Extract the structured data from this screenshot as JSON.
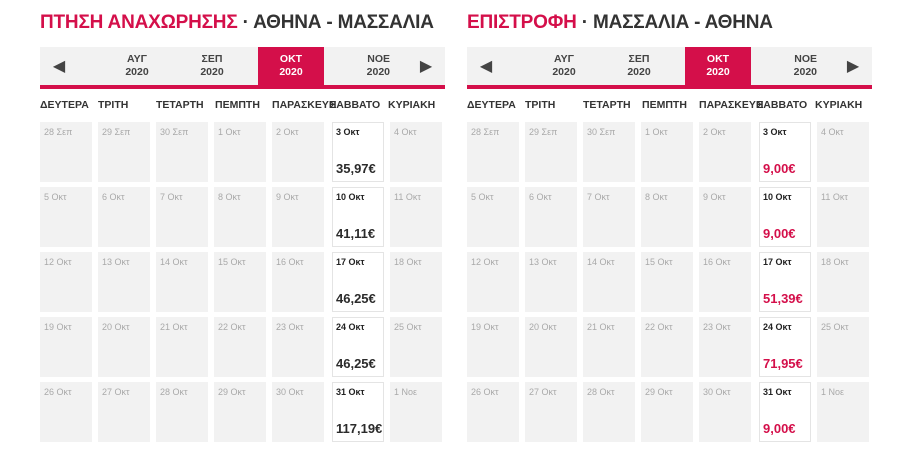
{
  "departure": {
    "title_label": "ΠΤΗΣΗ ΑΝΑΧΩΡΗΣΗΣ",
    "title_route": " · ΑΘΗΝΑ - ΜΑΣΣΑΛΙΑ",
    "months": [
      {
        "name": "ΑΥΓ",
        "year": "2020",
        "active": false
      },
      {
        "name": "ΣΕΠ",
        "year": "2020",
        "active": false
      },
      {
        "name": "ΟΚΤ",
        "year": "2020",
        "active": true
      },
      {
        "name": "ΝΟΕ",
        "year": "2020",
        "active": false
      }
    ],
    "weekdays": [
      "ΔΕΥΤΕΡΑ",
      "ΤΡΙΤΗ",
      "ΤΕΤΑΡΤΗ",
      "ΠΕΜΠΤΗ",
      "ΠΑΡΑΣΚΕΥΗ",
      "ΣΑΒΒΑΤΟ",
      "ΚΥΡΙΑΚΗ"
    ],
    "weeks": [
      [
        {
          "d": "28 Σεπ"
        },
        {
          "d": "29 Σεπ"
        },
        {
          "d": "30 Σεπ"
        },
        {
          "d": "1 Οκτ"
        },
        {
          "d": "2 Οκτ"
        },
        {
          "d": "3 Οκτ",
          "price": "35,97€"
        },
        {
          "d": "4 Οκτ"
        }
      ],
      [
        {
          "d": "5 Οκτ"
        },
        {
          "d": "6 Οκτ"
        },
        {
          "d": "7 Οκτ"
        },
        {
          "d": "8 Οκτ"
        },
        {
          "d": "9 Οκτ"
        },
        {
          "d": "10 Οκτ",
          "price": "41,11€"
        },
        {
          "d": "11 Οκτ"
        }
      ],
      [
        {
          "d": "12 Οκτ"
        },
        {
          "d": "13 Οκτ"
        },
        {
          "d": "14 Οκτ"
        },
        {
          "d": "15 Οκτ"
        },
        {
          "d": "16 Οκτ"
        },
        {
          "d": "17 Οκτ",
          "price": "46,25€"
        },
        {
          "d": "18 Οκτ"
        }
      ],
      [
        {
          "d": "19 Οκτ"
        },
        {
          "d": "20 Οκτ"
        },
        {
          "d": "21 Οκτ"
        },
        {
          "d": "22 Οκτ"
        },
        {
          "d": "23 Οκτ"
        },
        {
          "d": "24 Οκτ",
          "price": "46,25€"
        },
        {
          "d": "25 Οκτ"
        }
      ],
      [
        {
          "d": "26 Οκτ"
        },
        {
          "d": "27 Οκτ"
        },
        {
          "d": "28 Οκτ"
        },
        {
          "d": "29 Οκτ"
        },
        {
          "d": "30 Οκτ"
        },
        {
          "d": "31 Οκτ",
          "price": "117,19€"
        },
        {
          "d": "1 Νοε"
        }
      ]
    ]
  },
  "return": {
    "title_label": "ΕΠΙΣΤΡΟΦΗ",
    "title_route": " · ΜΑΣΣΑΛΙΑ - ΑΘΗΝΑ",
    "months": [
      {
        "name": "ΑΥΓ",
        "year": "2020",
        "active": false
      },
      {
        "name": "ΣΕΠ",
        "year": "2020",
        "active": false
      },
      {
        "name": "ΟΚΤ",
        "year": "2020",
        "active": true
      },
      {
        "name": "ΝΟΕ",
        "year": "2020",
        "active": false
      }
    ],
    "weekdays": [
      "ΔΕΥΤΕΡΑ",
      "ΤΡΙΤΗ",
      "ΤΕΤΑΡΤΗ",
      "ΠΕΜΠΤΗ",
      "ΠΑΡΑΣΚΕΥΗ",
      "ΣΑΒΒΑΤΟ",
      "ΚΥΡΙΑΚΗ"
    ],
    "weeks": [
      [
        {
          "d": "28 Σεπ"
        },
        {
          "d": "29 Σεπ"
        },
        {
          "d": "30 Σεπ"
        },
        {
          "d": "1 Οκτ"
        },
        {
          "d": "2 Οκτ"
        },
        {
          "d": "3 Οκτ",
          "price": "9,00€"
        },
        {
          "d": "4 Οκτ"
        }
      ],
      [
        {
          "d": "5 Οκτ"
        },
        {
          "d": "6 Οκτ"
        },
        {
          "d": "7 Οκτ"
        },
        {
          "d": "8 Οκτ"
        },
        {
          "d": "9 Οκτ"
        },
        {
          "d": "10 Οκτ",
          "price": "9,00€"
        },
        {
          "d": "11 Οκτ"
        }
      ],
      [
        {
          "d": "12 Οκτ"
        },
        {
          "d": "13 Οκτ"
        },
        {
          "d": "14 Οκτ"
        },
        {
          "d": "15 Οκτ"
        },
        {
          "d": "16 Οκτ"
        },
        {
          "d": "17 Οκτ",
          "price": "51,39€"
        },
        {
          "d": "18 Οκτ"
        }
      ],
      [
        {
          "d": "19 Οκτ"
        },
        {
          "d": "20 Οκτ"
        },
        {
          "d": "21 Οκτ"
        },
        {
          "d": "22 Οκτ"
        },
        {
          "d": "23 Οκτ"
        },
        {
          "d": "24 Οκτ",
          "price": "71,95€"
        },
        {
          "d": "25 Οκτ"
        }
      ],
      [
        {
          "d": "26 Οκτ"
        },
        {
          "d": "27 Οκτ"
        },
        {
          "d": "28 Οκτ"
        },
        {
          "d": "29 Οκτ"
        },
        {
          "d": "30 Οκτ"
        },
        {
          "d": "31 Οκτ",
          "price": "9,00€"
        },
        {
          "d": "1 Νοε"
        }
      ]
    ]
  },
  "icons": {
    "prev": "chevron-left-icon",
    "next": "chevron-right-icon"
  },
  "colors": {
    "accent": "#d40f4a",
    "disabled_cell": "#f2f2f2",
    "text": "#333333"
  }
}
